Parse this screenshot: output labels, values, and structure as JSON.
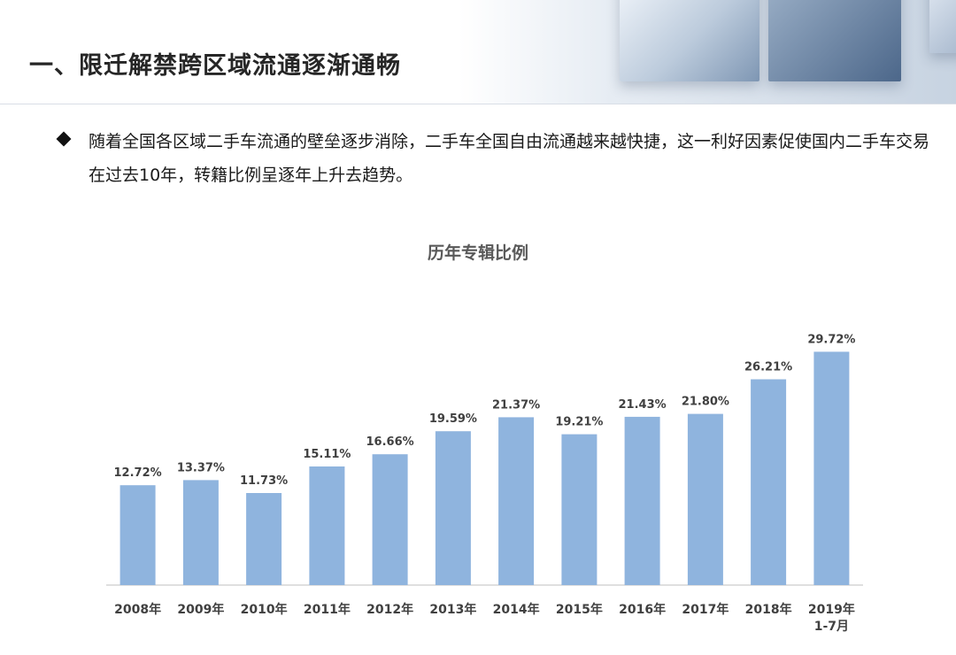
{
  "header": {
    "title": "一、限迁解禁跨区域流通逐渐通畅"
  },
  "bullet": {
    "icon": "diamond-bullet-icon",
    "text": "随着全国各区域二手车流通的壁垒逐步消除，二手车全国自由流通越来越快捷，这一利好因素促使国内二手车交易在过去10年，转籍比例呈逐年上升去趋势。"
  },
  "colors": {
    "bar": "#8fb4de",
    "axis": "#bfbfbf",
    "label": "#404040",
    "title": "#595959"
  },
  "chart_data": {
    "type": "bar",
    "title": "历年专辑比例",
    "xlabel": "",
    "ylabel": "",
    "categories": [
      "2008年",
      "2009年",
      "2010年",
      "2011年",
      "2012年",
      "2013年",
      "2014年",
      "2015年",
      "2016年",
      "2017年",
      "2018年",
      "2019年\n1-7月"
    ],
    "values": [
      12.72,
      13.37,
      11.73,
      15.11,
      16.66,
      19.59,
      21.37,
      19.21,
      21.43,
      21.8,
      26.21,
      29.72
    ],
    "data_labels": [
      "12.72%",
      "13.37%",
      "11.73%",
      "15.11%",
      "16.66%",
      "19.59%",
      "21.37%",
      "19.21%",
      "21.43%",
      "21.80%",
      "26.21%",
      "29.72%"
    ],
    "ylim": [
      0,
      30
    ],
    "grid": false,
    "legend": "none"
  }
}
